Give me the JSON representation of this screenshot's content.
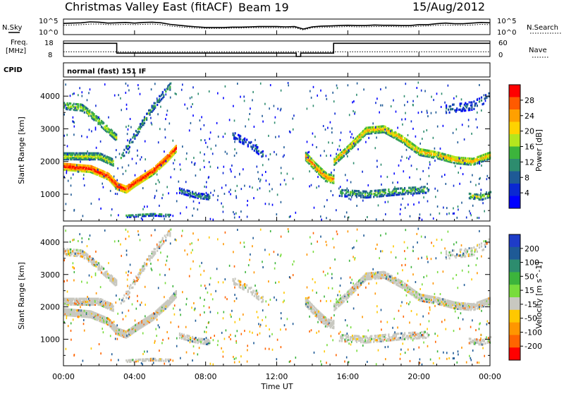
{
  "header": {
    "title": "Christmas Valley East (fitACF)",
    "beam": "Beam 19",
    "date": "15/Aug/2012"
  },
  "panel_labels": {
    "nsky": "N.Sky",
    "nsearch": "N.Search",
    "freq_line1": "Freq.",
    "freq_line2": "[MHz]",
    "nave": "Nave",
    "cpid": "CPID",
    "cpid_value": "normal (fast) 151 IF"
  },
  "small_ticks": {
    "noise_left_top": "10^5",
    "noise_left_bottom": "10^0",
    "noise_right_top": "10^5",
    "noise_right_bottom": "10^0",
    "freq_top": "18",
    "freq_bottom": "8",
    "nave_top": "60",
    "nave_bottom": "0"
  },
  "chart_data": [
    {
      "type": "line",
      "name": "noise",
      "x_hours": [
        0,
        0.5,
        1,
        1.5,
        2,
        2.5,
        3,
        3.5,
        4,
        4.5,
        5,
        5.5,
        6,
        6.5,
        7,
        7.5,
        8,
        8.5,
        9,
        9.5,
        10,
        10.5,
        11,
        11.5,
        12,
        12.5,
        13,
        13.5,
        14,
        14.5,
        15,
        15.5,
        16,
        16.5,
        17,
        17.5,
        18,
        18.5,
        19,
        19.5,
        20,
        20.5,
        21,
        21.5,
        22,
        22.5,
        23,
        23.5,
        24
      ],
      "sky_log10": [
        3.6,
        3.7,
        3.8,
        4.1,
        4.0,
        3.7,
        3.8,
        3.9,
        3.7,
        3.9,
        4.0,
        3.8,
        3.3,
        3.0,
        2.7,
        2.5,
        2.3,
        2.3,
        2.3,
        2.4,
        2.4,
        2.5,
        2.6,
        2.6,
        2.6,
        2.5,
        2.6,
        1.8,
        2.5,
        2.7,
        2.8,
        2.9,
        3.0,
        2.9,
        2.9,
        3.1,
        3.0,
        3.0,
        2.9,
        2.9,
        3.2,
        3.2,
        3.5,
        3.7,
        3.5,
        3.5,
        3.7,
        3.9,
        3.8
      ],
      "search_log10": [
        3.0,
        3.1,
        3.2,
        3.4,
        3.4,
        3.2,
        3.2,
        3.3,
        3.2,
        3.3,
        3.4,
        3.2,
        2.8,
        2.5,
        2.3,
        2.1,
        2.0,
        2.0,
        2.0,
        2.1,
        2.1,
        2.2,
        2.2,
        2.2,
        2.2,
        2.1,
        2.2,
        1.5,
        2.2,
        2.3,
        2.4,
        2.5,
        2.6,
        2.5,
        2.5,
        2.6,
        2.6,
        2.6,
        2.5,
        2.5,
        2.7,
        2.8,
        3.0,
        3.1,
        3.0,
        3.0,
        3.1,
        3.3,
        3.2
      ]
    },
    {
      "type": "line",
      "name": "frequency",
      "freq_segments": [
        {
          "from": 0,
          "to": 3.0,
          "mhz": 16.5
        },
        {
          "from": 3.0,
          "to": 13.1,
          "mhz": 10.2
        },
        {
          "from": 13.1,
          "to": 13.35,
          "mhz": 8.0
        },
        {
          "from": 13.35,
          "to": 13.6,
          "mhz": 10.2
        },
        {
          "from": 13.6,
          "to": 15.2,
          "mhz": 10.2
        },
        {
          "from": 15.2,
          "to": 24,
          "mhz": 16.5
        }
      ],
      "nave_level": 18
    },
    {
      "type": "heatmap",
      "name": "power",
      "ylabel": "Slant Range [km]",
      "ylim": [
        180,
        4500
      ],
      "yticks": [
        1000,
        2000,
        3000,
        4000
      ],
      "colorbar": {
        "label": "Power [dB]",
        "ticks": [
          "28",
          "24",
          "20",
          "16",
          "12",
          "8",
          "4"
        ],
        "colors": [
          "#ff0000",
          "#ff5a00",
          "#ffa000",
          "#ffd200",
          "#b4e61e",
          "#3cb43c",
          "#2d8c6e",
          "#1e5a96",
          "#0a28d2",
          "#0000ff"
        ]
      }
    },
    {
      "type": "heatmap",
      "name": "velocity",
      "ylabel": "Slant Range [km]",
      "xlabel": "Time UT",
      "ylim": [
        180,
        4500
      ],
      "yticks": [
        1000,
        2000,
        3000,
        4000
      ],
      "x_ticks": [
        "00:00",
        "04:00",
        "08:00",
        "12:00",
        "16:00",
        "20:00",
        "00:00"
      ],
      "colorbar": {
        "label": "Velocity [m s^-1]",
        "ticks": [
          "200",
          "100",
          "50",
          "15",
          "-15",
          "-50",
          "-100",
          "-200"
        ],
        "colors": [
          "#1e3cc8",
          "#1e5a96",
          "#2d8c6e",
          "#3cb43c",
          "#78dc3c",
          "#c8c8c0",
          "#ffc800",
          "#ff9600",
          "#ff6400",
          "#ff0000"
        ]
      }
    }
  ]
}
